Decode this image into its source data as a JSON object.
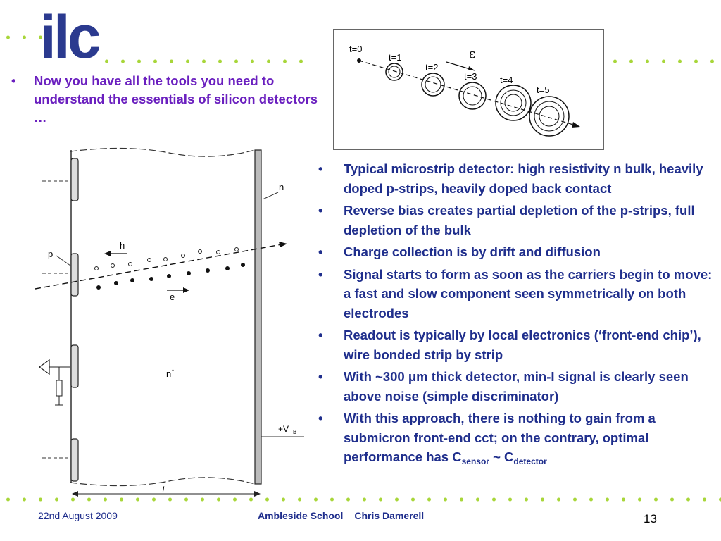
{
  "logo": {
    "text": "ilc"
  },
  "intro_bullet": "Now you have all the tools you need to understand the essentials of silicon detectors …",
  "field_diagram": {
    "time_labels": [
      "t=0",
      "t=1",
      "t=2",
      "t=3",
      "t=4",
      "t=5"
    ],
    "field_label": "ε"
  },
  "detector_diagram": {
    "labels": {
      "n_plus": "n",
      "p": "p",
      "h": "h",
      "e": "e",
      "bulk": "n",
      "bulk_sup": "-",
      "bias": "+V",
      "bias_sub": "B",
      "length": "l"
    }
  },
  "bullets": [
    {
      "text": "Typical microstrip detector: high resistivity n bulk, heavily doped p-strips, heavily doped back contact"
    },
    {
      "text": "Reverse bias creates partial depletion of the   p-strips, full depletion of the bulk"
    },
    {
      "text": "Charge collection is by drift and diffusion"
    },
    {
      "text": "Signal starts to form as soon as the carriers begin to move:  a fast and slow component seen symmetrically on both electrodes"
    },
    {
      "text": "Readout is typically by local electronics (‘front-end chip’), wire bonded strip by strip"
    },
    {
      "text": "With ~300 μm thick detector, min-I signal is clearly seen above noise (simple discriminator)"
    },
    {
      "text_main": "With this approach, there is nothing to gain from a submicron front-end cct; on the contrary, optimal performance has C",
      "sub1": "sensor",
      "mid": " ~ C",
      "sub2": "detector"
    }
  ],
  "footer": {
    "date": "22nd August 2009",
    "school": "Ambleside School",
    "author": "Chris Damerell",
    "page": "13"
  },
  "colors": {
    "dots": "#a8d63a",
    "intro": "#6a1fbf",
    "body": "#1f2e8c",
    "logo": "#2b3a8f"
  }
}
